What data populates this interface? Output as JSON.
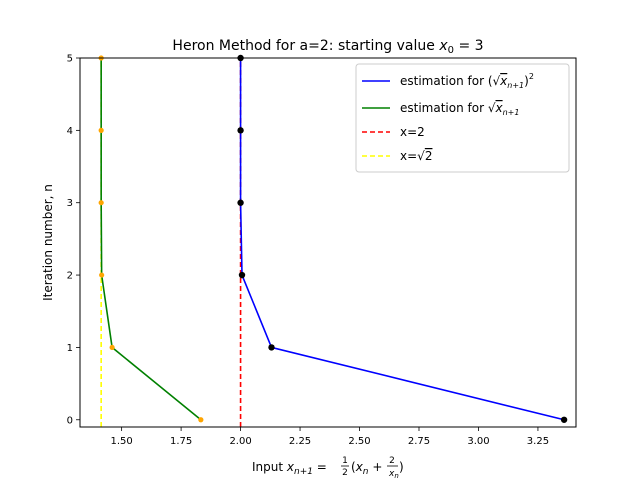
{
  "chart_data": {
    "type": "line",
    "title_prefix": "Heron Method for a=2: starting value ",
    "title_var": "x",
    "title_sub": "0",
    "title_suffix": " = 3",
    "xlabel_prefix": "Input ",
    "xlabel_var": "x",
    "xlabel_sub": "n+1",
    "xlabel_eq": " = ",
    "xlabel_half_num": "1",
    "xlabel_half_den": "2",
    "xlabel_open": "(",
    "xlabel_xn": "x",
    "xlabel_xn_sub": "n",
    "xlabel_plus": " + ",
    "xlabel_frac_num": "2",
    "xlabel_frac_den": "x",
    "xlabel_frac_den_sub": "n",
    "xlabel_close": ")",
    "ylabel": "Iteration number, n",
    "xlim": [
      1.325,
      3.41
    ],
    "ylim": [
      -0.1,
      5
    ],
    "xticks": [
      "1.50",
      "1.75",
      "2.00",
      "2.25",
      "2.50",
      "2.75",
      "3.00",
      "3.25"
    ],
    "xtick_values": [
      1.5,
      1.75,
      2.0,
      2.25,
      2.5,
      2.75,
      3.0,
      3.25
    ],
    "yticks": [
      "0",
      "1",
      "2",
      "3",
      "4",
      "5"
    ],
    "ytick_values": [
      0,
      1,
      2,
      3,
      4,
      5
    ],
    "grid": false,
    "legend_position": "top-right",
    "series": [
      {
        "name": "estimation for (√x_{n+1})²",
        "legend_prefix": "estimation for (",
        "legend_sqrt": "√",
        "legend_var": "x",
        "legend_sub": "n+1",
        "legend_close": ")",
        "legend_sup": "2",
        "color": "#0000ff",
        "marker_color": "#000000",
        "style": "solid",
        "x": [
          3.36,
          2.13,
          2.006,
          2.0,
          2.0,
          2.0
        ],
        "y": [
          0,
          1,
          2,
          3,
          4,
          5
        ]
      },
      {
        "name": "estimation for √x_{n+1}",
        "legend_prefix": "estimation for ",
        "legend_sqrt": "√",
        "legend_var": "x",
        "legend_sub": "n+1",
        "color": "#008000",
        "marker_color": "#ffa500",
        "style": "solid",
        "x": [
          1.833,
          1.46,
          1.416,
          1.414,
          1.414,
          1.414
        ],
        "y": [
          0,
          1,
          2,
          3,
          4,
          5
        ]
      },
      {
        "name": "x=2",
        "legend_prefix": "x=2",
        "color": "#ff0000",
        "style": "dashed",
        "x": [
          2.0,
          2.0
        ],
        "y": [
          -0.1,
          5
        ]
      },
      {
        "name": "x=√2",
        "legend_prefix": "x=",
        "legend_sqrt": "√",
        "legend_var": "2",
        "color": "#ffff00",
        "style": "dashed",
        "x": [
          1.414,
          1.414
        ],
        "y": [
          -0.1,
          5
        ]
      }
    ]
  }
}
